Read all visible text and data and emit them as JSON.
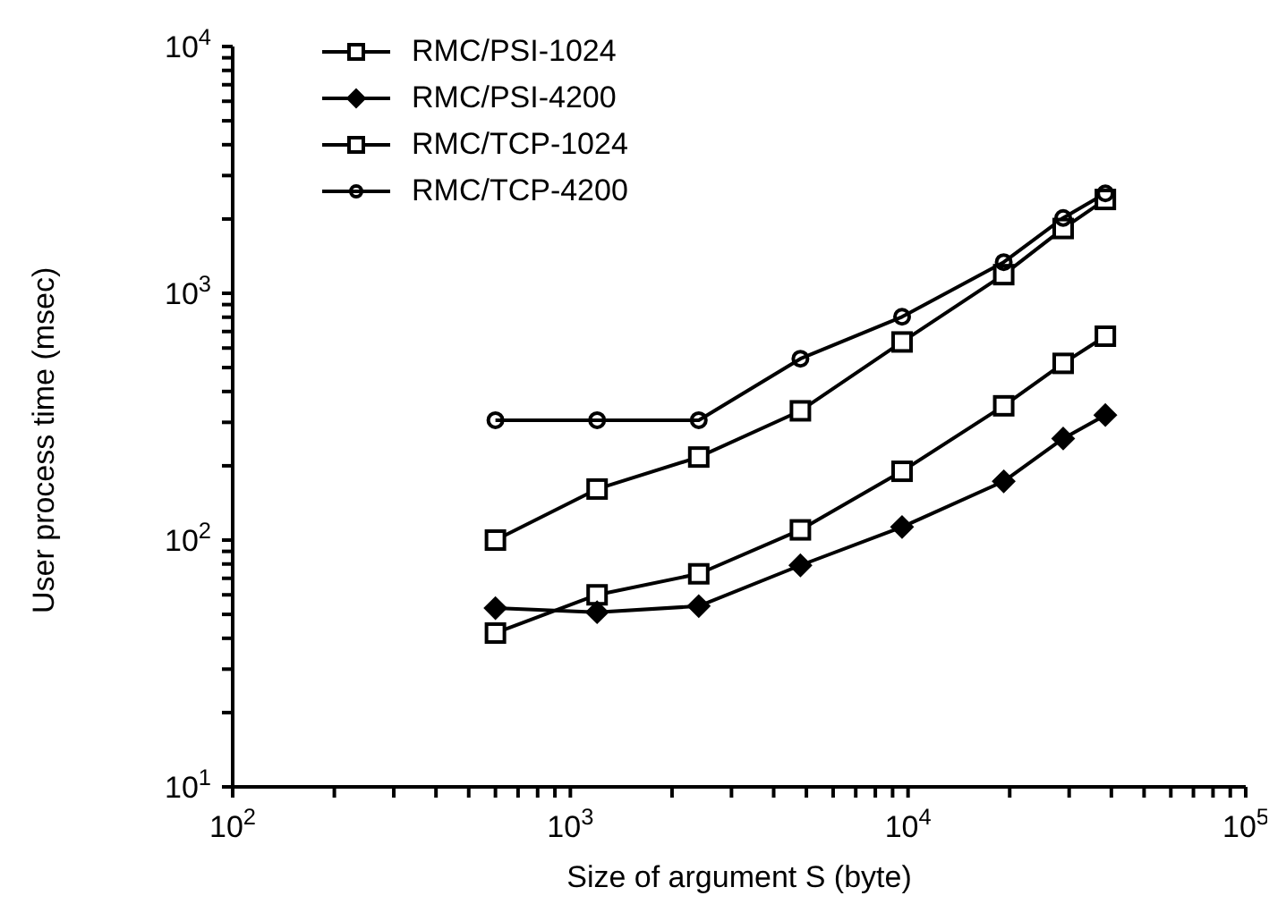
{
  "chart_data": {
    "type": "line",
    "xlabel": "Size of argument S (byte)",
    "ylabel": "User process time (msec)",
    "x": [
      600,
      1200,
      2400,
      4800,
      9600,
      19200,
      28800,
      38400
    ],
    "series": [
      {
        "name": "RMC/PSI-1024",
        "color": "#000000",
        "marker": "square",
        "values": [
          42,
          60,
          73,
          110,
          190,
          350,
          520,
          670
        ]
      },
      {
        "name": "RMC/PSI-4200",
        "color": "#000000",
        "marker": "diamond",
        "values": [
          53,
          51,
          54,
          79,
          113,
          173,
          258,
          321
        ]
      },
      {
        "name": "RMC/TCP-1024",
        "color": "#000000",
        "marker": "square",
        "values": [
          100,
          161,
          217,
          334,
          635,
          1190,
          1830,
          2400
        ]
      },
      {
        "name": "RMC/TCP-4200",
        "color": "#000000",
        "marker": "circle",
        "values": [
          306,
          306,
          306,
          543,
          803,
          1337,
          2020,
          2540
        ]
      }
    ],
    "log": "xy",
    "xlim": [
      100,
      100000
    ],
    "ylim": [
      10,
      10000
    ],
    "xticks": [
      {
        "value": 100,
        "label": "10$^{2}$"
      },
      {
        "value": 200,
        "label": null
      },
      {
        "value": 300,
        "label": null
      },
      {
        "value": 400,
        "label": null
      },
      {
        "value": 500,
        "label": null
      },
      {
        "value": 600,
        "label": null
      },
      {
        "value": 700,
        "label": null
      },
      {
        "value": 800,
        "label": null
      },
      {
        "value": 900,
        "label": null
      },
      {
        "value": 1000,
        "label": "10$^{3}$"
      },
      {
        "value": 2000,
        "label": null
      },
      {
        "value": 3000,
        "label": null
      },
      {
        "value": 4000,
        "label": null
      },
      {
        "value": 5000,
        "label": null
      },
      {
        "value": 6000,
        "label": null
      },
      {
        "value": 7000,
        "label": null
      },
      {
        "value": 8000,
        "label": null
      },
      {
        "value": 9000,
        "label": null
      },
      {
        "value": 10000,
        "label": "10$^{4}$"
      },
      {
        "value": 20000,
        "label": null
      },
      {
        "value": 30000,
        "label": null
      },
      {
        "value": 40000,
        "label": null
      },
      {
        "value": 50000,
        "label": null
      },
      {
        "value": 60000,
        "label": null
      },
      {
        "value": 70000,
        "label": null
      },
      {
        "value": 80000,
        "label": null
      },
      {
        "value": 90000,
        "label": null
      },
      {
        "value": 100000,
        "label": "10$^{5}$"
      }
    ],
    "yticks": [
      {
        "value": 10,
        "label": "10$^{1}$"
      },
      {
        "value": 20,
        "label": null
      },
      {
        "value": 30,
        "label": null
      },
      {
        "value": 40,
        "label": null
      },
      {
        "value": 50,
        "label": null
      },
      {
        "value": 60,
        "label": null
      },
      {
        "value": 70,
        "label": null
      },
      {
        "value": 80,
        "label": null
      },
      {
        "value": 90,
        "label": null
      },
      {
        "value": 100,
        "label": "10$^{2}$"
      },
      {
        "value": 200,
        "label": null
      },
      {
        "value": 300,
        "label": null
      },
      {
        "value": 400,
        "label": null
      },
      {
        "value": 500,
        "label": null
      },
      {
        "value": 600,
        "label": null
      },
      {
        "value": 700,
        "label": null
      },
      {
        "value": 800,
        "label": null
      },
      {
        "value": 900,
        "label": null
      },
      {
        "value": 1000,
        "label": "10$^{3}$"
      },
      {
        "value": 2000,
        "label": null
      },
      {
        "value": 3000,
        "label": null
      },
      {
        "value": 4000,
        "label": null
      },
      {
        "value": 5000,
        "label": null
      },
      {
        "value": 6000,
        "label": null
      },
      {
        "value": 7000,
        "label": null
      },
      {
        "value": 8000,
        "label": null
      },
      {
        "value": 9000,
        "label": null
      },
      {
        "value": 10000,
        "label": "10$^{4}$"
      }
    ],
    "grid": false,
    "legend": "top left",
    "line_style": "solid"
  }
}
